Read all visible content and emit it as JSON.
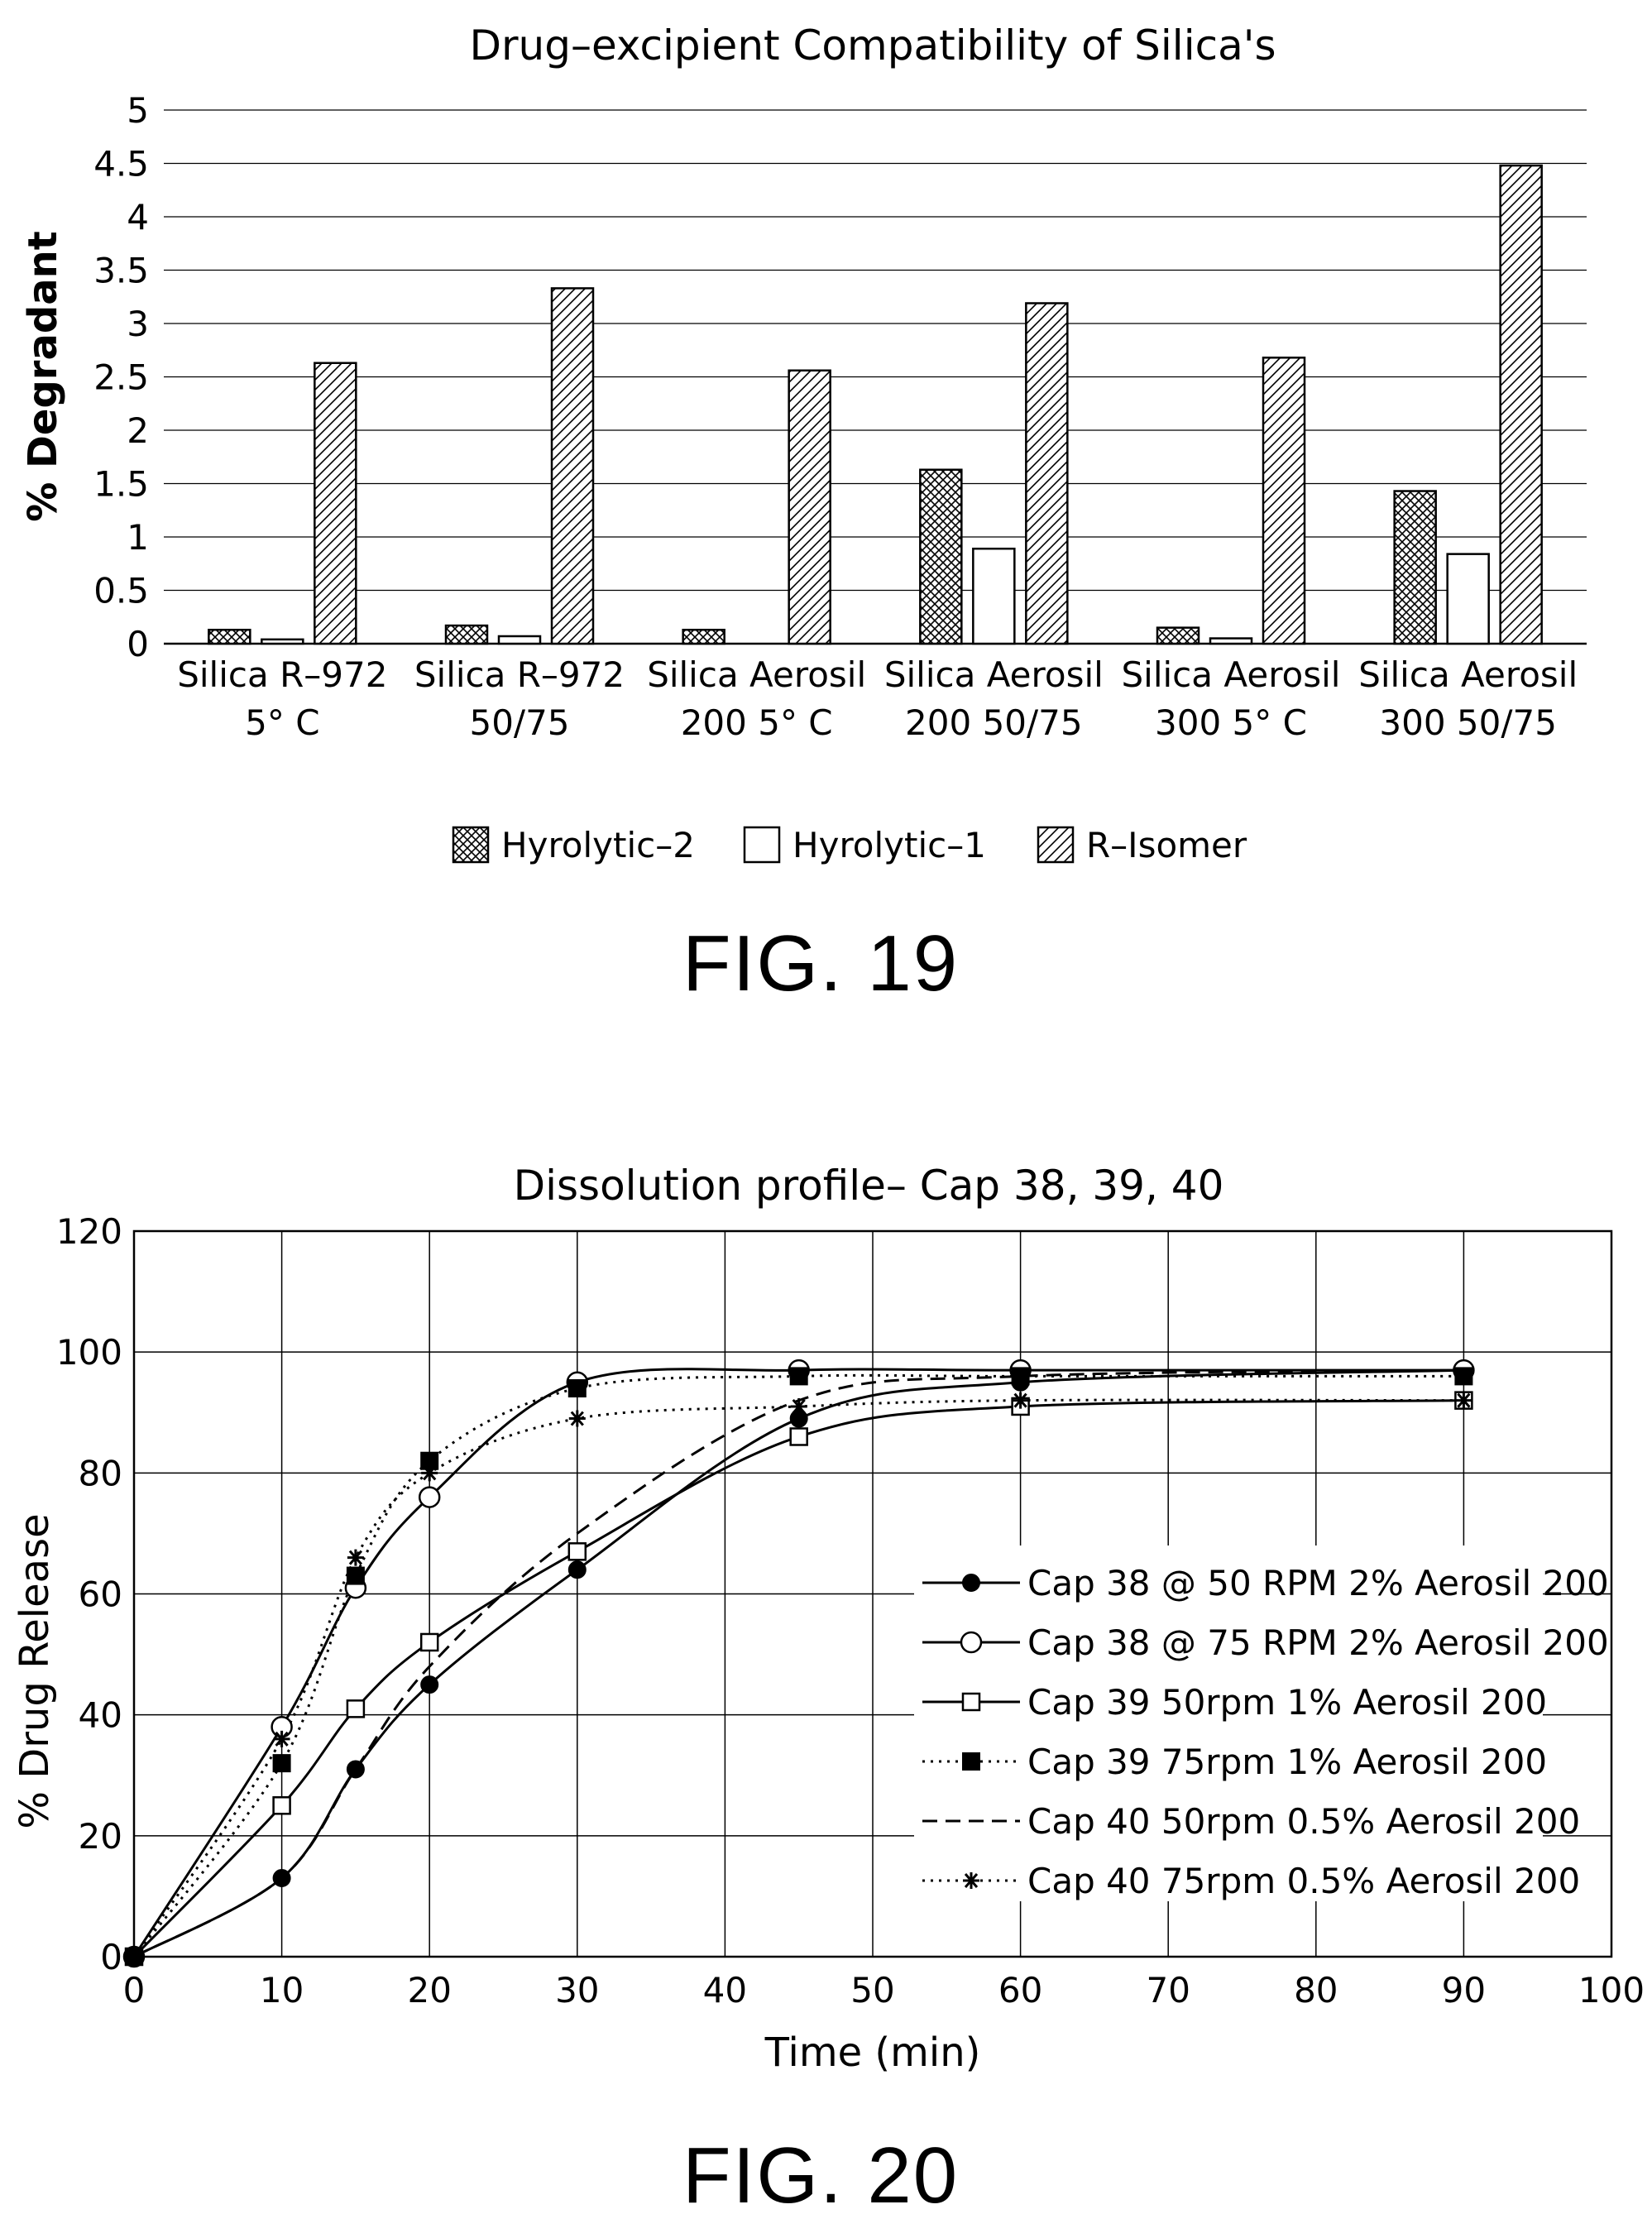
{
  "figures": {
    "fig19_label": "FIG. 19",
    "fig20_label": "FIG. 20"
  },
  "chart_data": [
    {
      "type": "bar",
      "title": "Drug–excipient Compatibility of Silica's",
      "ylabel": "% Degradant",
      "xlabel": "",
      "ylim": [
        0,
        5
      ],
      "yticks": [
        "0",
        "0.5",
        "1",
        "1.5",
        "2",
        "2.5",
        "3",
        "3.5",
        "4",
        "4.5",
        "5"
      ],
      "grid": "horizontal",
      "legend": "bottom",
      "categories": [
        [
          "Silica  R–972",
          "5° C"
        ],
        [
          "Silica  R–972",
          "50/75"
        ],
        [
          "Silica  Aerosil",
          "200  5° C"
        ],
        [
          "Silica  Aerosil",
          "200  50/75"
        ],
        [
          "Silica  Aerosil",
          "300  5° C"
        ],
        [
          "Silica  Aerosil",
          "300  50/75"
        ]
      ],
      "series": [
        {
          "name": "Hyrolytic–2",
          "pattern": "crosshatch",
          "values": [
            0.13,
            0.17,
            0.13,
            1.63,
            0.15,
            1.43
          ]
        },
        {
          "name": "Hyrolytic–1",
          "pattern": "empty",
          "values": [
            0.04,
            0.07,
            0.0,
            0.89,
            0.05,
            0.84
          ]
        },
        {
          "name": "R–Isomer",
          "pattern": "diagonal",
          "values": [
            2.63,
            3.33,
            2.56,
            3.19,
            2.68,
            4.48
          ]
        }
      ]
    },
    {
      "type": "line",
      "title": "Dissolution profile–  Cap 38, 39, 40",
      "xlabel": "Time  (min)",
      "ylabel": "% Drug Release",
      "xlim": [
        0,
        100
      ],
      "ylim": [
        0,
        120
      ],
      "xticks": [
        "0",
        "10",
        "20",
        "30",
        "40",
        "50",
        "60",
        "70",
        "80",
        "90",
        "100"
      ],
      "yticks": [
        "0",
        "20",
        "40",
        "60",
        "80",
        "100",
        "120"
      ],
      "grid": "both",
      "legend": "center-right",
      "x": [
        0,
        10,
        15,
        20,
        30,
        45,
        60,
        90
      ],
      "series": [
        {
          "name": "Cap 38 @ 50 RPM 2% Aerosil 200",
          "line": "solid",
          "marker": "filled-circle",
          "values": [
            0,
            13,
            31,
            45,
            64,
            89,
            95,
            97
          ]
        },
        {
          "name": "Cap 38 @ 75 RPM 2% Aerosil 200",
          "line": "solid",
          "marker": "open-circle",
          "values": [
            0,
            38,
            61,
            76,
            95,
            97,
            97,
            97
          ]
        },
        {
          "name": "Cap 39 50rpm 1% Aerosil 200",
          "line": "solid",
          "marker": "open-square",
          "values": [
            0,
            25,
            41,
            52,
            67,
            86,
            91,
            92
          ]
        },
        {
          "name": "Cap 39 75rpm  1% Aerosil 200",
          "line": "dotted",
          "marker": "filled-square",
          "values": [
            0,
            32,
            63,
            82,
            94,
            96,
            96,
            96
          ]
        },
        {
          "name": "Cap 40 50rpm 0.5% Aerosil 200",
          "line": "dashed",
          "marker": "none",
          "values": [
            0,
            13,
            31,
            48,
            70,
            92,
            96,
            97
          ]
        },
        {
          "name": "Cap 40 75rpm 0.5% Aerosil 200",
          "line": "dotted",
          "marker": "asterisk",
          "values": [
            0,
            36,
            66,
            80,
            89,
            91,
            92,
            92
          ]
        }
      ]
    }
  ]
}
